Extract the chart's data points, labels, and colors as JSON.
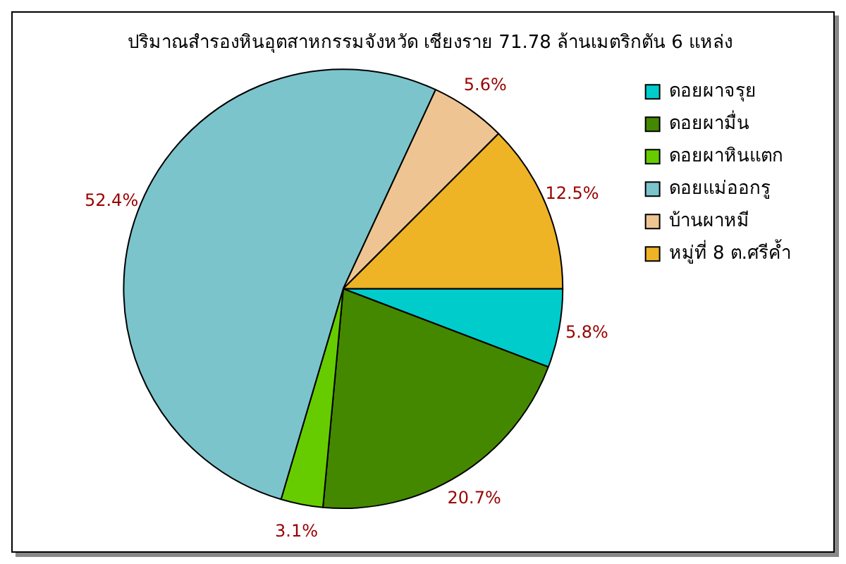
{
  "chart_data": {
    "type": "pie",
    "title": "ปริมาณสำรองหินอุตสาหกรรมจังหวัด เชียงราย 71.78 ล้านเมตริกตัน 6 แหล่ง",
    "categories": [
      "ดอยผาจรุย",
      "ดอยผามื่น",
      "ดอยผาหินแตก",
      "ดอยแม่ออกรู",
      "บ้านผาหมี",
      "หมู่ที่ 8 ต.ศรีค้ำ"
    ],
    "values": [
      5.8,
      20.7,
      3.1,
      52.4,
      5.6,
      12.5
    ],
    "colors": [
      "#00cccc",
      "#448800",
      "#66cc00",
      "#7bc4cc",
      "#eec592",
      "#efb326"
    ],
    "value_labels": [
      "5.8%",
      "20.7%",
      "3.1%",
      "52.4%",
      "5.6%",
      "12.5%"
    ],
    "legend": "top right"
  }
}
